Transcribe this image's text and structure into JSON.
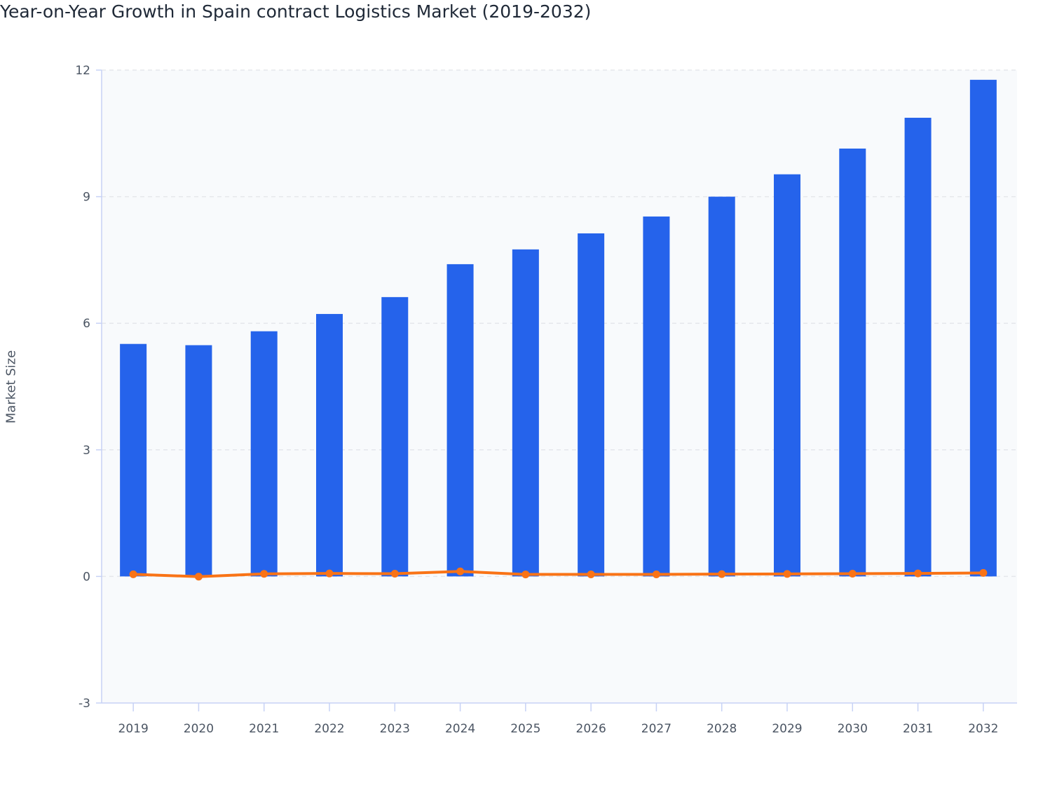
{
  "chart_data": {
    "type": "bar",
    "title": "Year-on-Year Growth in Spain contract Logistics Market (2019-2032)",
    "xlabel": "",
    "ylabel": "Market Size",
    "ylim": [
      -3,
      12
    ],
    "yticks": [
      "-3",
      "0",
      "3",
      "6",
      "9",
      "12"
    ],
    "grid": true,
    "categories": [
      "2019",
      "2020",
      "2021",
      "2022",
      "2023",
      "2024",
      "2025",
      "2026",
      "2027",
      "2028",
      "2029",
      "2030",
      "2031",
      "2032"
    ],
    "series": [
      {
        "type": "bar",
        "color": "#2563eb",
        "values": [
          5.51,
          5.48,
          5.81,
          6.22,
          6.62,
          7.4,
          7.75,
          8.13,
          8.53,
          9.0,
          9.53,
          10.14,
          10.87,
          11.77
        ]
      },
      {
        "type": "line",
        "color": "#f97316",
        "values": [
          0.05,
          -0.005,
          0.06,
          0.07,
          0.064,
          0.118,
          0.047,
          0.049,
          0.049,
          0.055,
          0.059,
          0.064,
          0.072,
          0.083
        ]
      }
    ],
    "plot_background": "#f8fafc"
  }
}
